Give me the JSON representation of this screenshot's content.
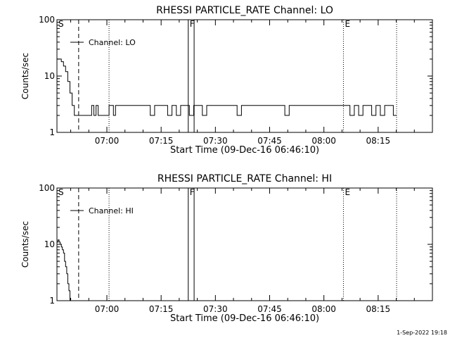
{
  "footer": {
    "date_stamp": "1-Sep-2022 19:18"
  },
  "colors": {
    "background": "#ffffff",
    "foreground": "#000000"
  },
  "chart_data": [
    {
      "type": "line",
      "title": "RHESSI PARTICLE_RATE Channel: LO",
      "xlabel": "Start Time (09-Dec-16 06:46:10)",
      "ylabel": "Counts/sec",
      "y_scale": "log",
      "ylim": [
        1,
        100
      ],
      "y_ticks": [
        1,
        10,
        100
      ],
      "y_tick_labels": [
        "1",
        "10",
        "100"
      ],
      "xlim": [
        6.77,
        8.5
      ],
      "x_ticks": [
        7.0,
        7.25,
        7.5,
        7.75,
        8.0,
        8.25
      ],
      "x_tick_labels": [
        "07:00",
        "07:15",
        "07:30",
        "07:45",
        "08:00",
        "08:15"
      ],
      "legend": {
        "label": "Channel: LO",
        "placement": "top-left"
      },
      "markers": [
        {
          "label": "S",
          "x": 6.77,
          "style": "none"
        },
        {
          "label": "",
          "x": 6.87,
          "style": "dashed"
        },
        {
          "label": "",
          "x": 7.01,
          "style": "dotted"
        },
        {
          "label": "F",
          "x": 7.375,
          "style": "solid"
        },
        {
          "label": "",
          "x": 7.402,
          "style": "solid"
        },
        {
          "label": "E",
          "x": 8.09,
          "style": "dotted"
        },
        {
          "label": "",
          "x": 8.335,
          "style": "dotted"
        }
      ],
      "series": [
        {
          "x": [
            6.77,
            6.78,
            6.79,
            6.8,
            6.81,
            6.82,
            6.83,
            6.84,
            6.85,
            6.86,
            6.88,
            6.9,
            6.92,
            6.93,
            6.94,
            6.95,
            6.96,
            6.97,
            6.98,
            6.99,
            7.0,
            7.01,
            7.02,
            7.03,
            7.04,
            7.05,
            7.07,
            7.1,
            7.13,
            7.15,
            7.18,
            7.2,
            7.22,
            7.24,
            7.26,
            7.28,
            7.3,
            7.32,
            7.34,
            7.36,
            7.38,
            7.4,
            7.42,
            7.44,
            7.46,
            7.48,
            7.5,
            7.52,
            7.54,
            7.56,
            7.58,
            7.6,
            7.62,
            7.64,
            7.66,
            7.68,
            7.7,
            7.72,
            7.74,
            7.76,
            7.78,
            7.8,
            7.82,
            7.84,
            7.86,
            7.88,
            7.9,
            7.92,
            7.94,
            7.96,
            7.98,
            8.0,
            8.02,
            8.04,
            8.06,
            8.08,
            8.1,
            8.12,
            8.14,
            8.16,
            8.18,
            8.2,
            8.22,
            8.24,
            8.26,
            8.28,
            8.3,
            8.32,
            8.335
          ],
          "y": [
            20,
            20,
            18,
            15,
            12,
            8,
            5,
            3,
            2,
            2,
            2,
            2,
            2,
            3,
            2,
            3,
            2,
            2,
            2,
            2,
            2,
            3,
            3,
            2,
            3,
            3,
            3,
            3,
            3,
            3,
            3,
            2,
            3,
            3,
            3,
            2,
            3,
            2,
            3,
            3,
            2,
            3,
            3,
            2,
            3,
            3,
            3,
            3,
            3,
            3,
            3,
            2,
            3,
            3,
            3,
            3,
            3,
            3,
            3,
            3,
            3,
            3,
            2,
            3,
            3,
            3,
            3,
            3,
            3,
            3,
            3,
            3,
            3,
            3,
            3,
            3,
            3,
            2,
            3,
            2,
            3,
            3,
            2,
            3,
            2,
            3,
            3,
            2,
            2
          ]
        }
      ]
    },
    {
      "type": "line",
      "title": "RHESSI PARTICLE_RATE Channel: HI",
      "xlabel": "Start Time (09-Dec-16 06:46:10)",
      "ylabel": "Counts/sec",
      "y_scale": "log",
      "ylim": [
        1,
        100
      ],
      "y_ticks": [
        1,
        10,
        100
      ],
      "y_tick_labels": [
        "1",
        "10",
        "100"
      ],
      "xlim": [
        6.77,
        8.5
      ],
      "x_ticks": [
        7.0,
        7.25,
        7.5,
        7.75,
        8.0,
        8.25
      ],
      "x_tick_labels": [
        "07:00",
        "07:15",
        "07:30",
        "07:45",
        "08:00",
        "08:15"
      ],
      "legend": {
        "label": "Channel: HI",
        "placement": "top-left"
      },
      "markers": [
        {
          "label": "S",
          "x": 6.77,
          "style": "none"
        },
        {
          "label": "",
          "x": 6.87,
          "style": "dashed"
        },
        {
          "label": "",
          "x": 7.01,
          "style": "dotted"
        },
        {
          "label": "F",
          "x": 7.375,
          "style": "solid"
        },
        {
          "label": "",
          "x": 7.402,
          "style": "solid"
        },
        {
          "label": "E",
          "x": 8.09,
          "style": "dotted"
        },
        {
          "label": "",
          "x": 8.335,
          "style": "dotted"
        }
      ],
      "series": [
        {
          "x": [
            6.77,
            6.775,
            6.78,
            6.785,
            6.79,
            6.795,
            6.8,
            6.805,
            6.81,
            6.815,
            6.82,
            6.825,
            6.83
          ],
          "y": [
            11,
            12,
            11,
            10,
            9,
            8,
            7,
            5,
            4,
            3,
            2,
            1.5,
            1.0
          ]
        }
      ]
    }
  ]
}
